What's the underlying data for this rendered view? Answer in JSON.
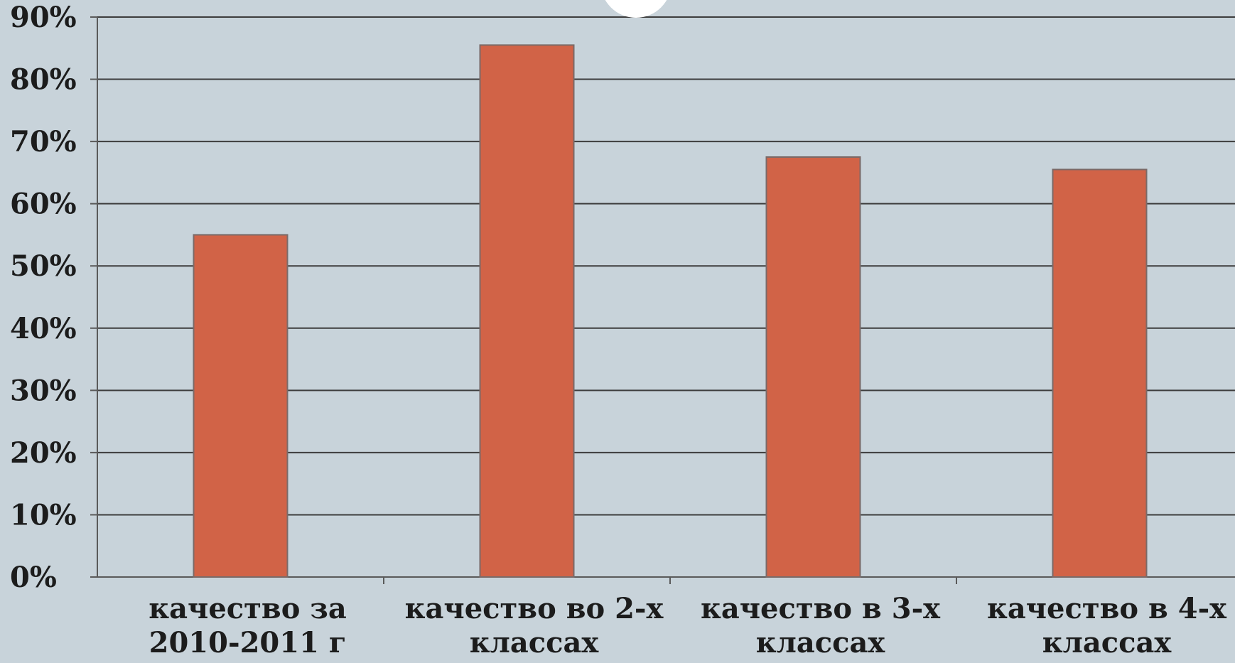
{
  "chart_data": {
    "type": "bar",
    "categories": [
      [
        "качество за",
        "2010-2011 г"
      ],
      [
        "качество во 2-х",
        "классах"
      ],
      [
        "качество в 3-х",
        "классах"
      ],
      [
        "качество в 4-х",
        "классах"
      ]
    ],
    "values": [
      55,
      85.5,
      67.5,
      65.5
    ],
    "y_ticks": [
      "0%",
      "10%",
      "20%",
      "30%",
      "40%",
      "50%",
      "60%",
      "70%",
      "80%",
      "90%"
    ],
    "ylim": [
      0,
      90
    ],
    "grid": true,
    "legend": "none",
    "colors": {
      "bar": "#d16347",
      "bar_edge": "#7a6a68",
      "grid": "#3d3d3d",
      "axis": "#5a5a5a",
      "background": "#c8d3da",
      "text": "#1c1c1c"
    }
  }
}
